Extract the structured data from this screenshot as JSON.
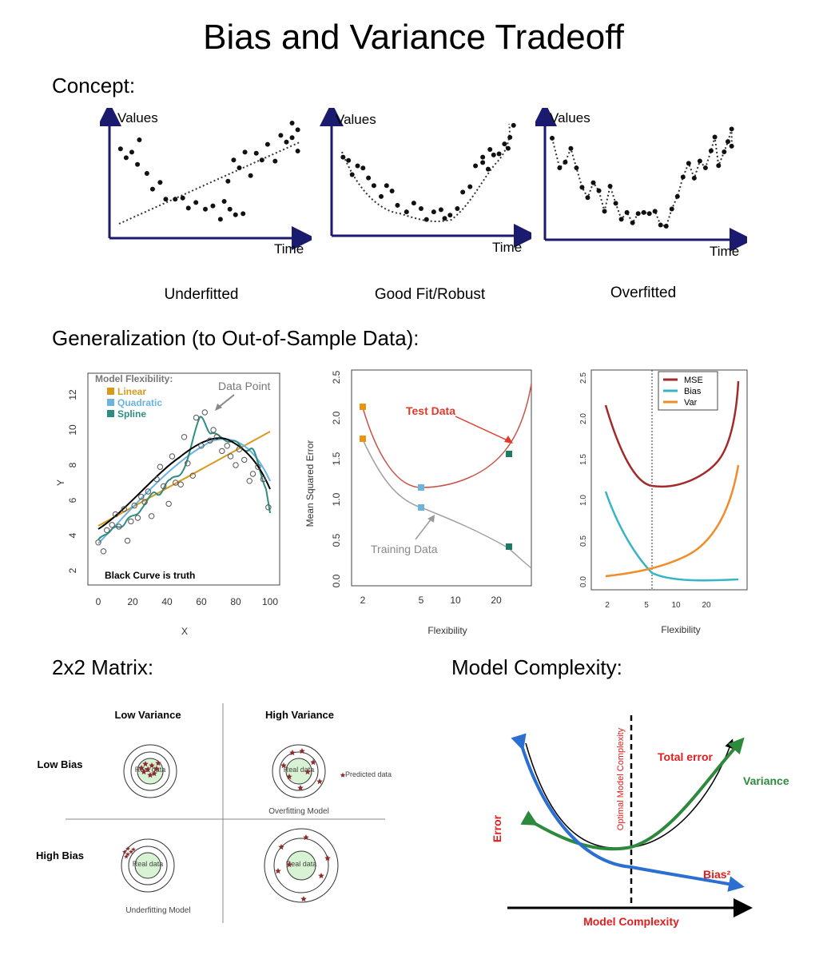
{
  "title": "Bias and Variance Tradeoff",
  "sections": {
    "concept": "Concept:",
    "generalization": "Generalization (to Out-of-Sample Data):",
    "matrix": "2x2 Matrix:",
    "complexity": "Model Complexity:"
  },
  "concept": {
    "panels": [
      {
        "ylabel": "Values",
        "xlabel": "Time",
        "caption": "Underfitted"
      },
      {
        "ylabel": "Values",
        "xlabel": "Time",
        "caption": "Good Fit/Robust"
      },
      {
        "ylabel": "Values",
        "xlabel": "Time",
        "caption": "Overfitted"
      }
    ],
    "points_underfit": [
      [
        0.05,
        0.72
      ],
      [
        0.08,
        0.64
      ],
      [
        0.11,
        0.69
      ],
      [
        0.14,
        0.58
      ],
      [
        0.15,
        0.8
      ],
      [
        0.19,
        0.5
      ],
      [
        0.22,
        0.36
      ],
      [
        0.26,
        0.42
      ],
      [
        0.29,
        0.27
      ],
      [
        0.34,
        0.27
      ],
      [
        0.38,
        0.28
      ],
      [
        0.41,
        0.19
      ],
      [
        0.45,
        0.24
      ],
      [
        0.5,
        0.18
      ],
      [
        0.54,
        0.21
      ],
      [
        0.58,
        0.09
      ],
      [
        0.63,
        0.18
      ],
      [
        0.66,
        0.13
      ],
      [
        0.7,
        0.14
      ],
      [
        0.6,
        0.25
      ],
      [
        0.62,
        0.43
      ],
      [
        0.65,
        0.62
      ],
      [
        0.68,
        0.55
      ],
      [
        0.71,
        0.69
      ],
      [
        0.74,
        0.48
      ],
      [
        0.77,
        0.68
      ],
      [
        0.8,
        0.62
      ],
      [
        0.83,
        0.76
      ],
      [
        0.87,
        0.61
      ],
      [
        0.9,
        0.84
      ],
      [
        0.93,
        0.78
      ],
      [
        0.96,
        0.82
      ],
      [
        0.96,
        0.95
      ],
      [
        0.99,
        0.89
      ],
      [
        0.99,
        0.7
      ]
    ],
    "points_good": [
      [
        0.05,
        0.66
      ],
      [
        0.08,
        0.63
      ],
      [
        0.1,
        0.5
      ],
      [
        0.13,
        0.58
      ],
      [
        0.16,
        0.56
      ],
      [
        0.19,
        0.47
      ],
      [
        0.22,
        0.4
      ],
      [
        0.26,
        0.3
      ],
      [
        0.29,
        0.4
      ],
      [
        0.32,
        0.35
      ],
      [
        0.35,
        0.22
      ],
      [
        0.4,
        0.16
      ],
      [
        0.44,
        0.24
      ],
      [
        0.48,
        0.19
      ],
      [
        0.51,
        0.09
      ],
      [
        0.55,
        0.16
      ],
      [
        0.59,
        0.18
      ],
      [
        0.61,
        0.1
      ],
      [
        0.64,
        0.13
      ],
      [
        0.68,
        0.19
      ],
      [
        0.71,
        0.34
      ],
      [
        0.75,
        0.39
      ],
      [
        0.78,
        0.58
      ],
      [
        0.82,
        0.61
      ],
      [
        0.85,
        0.55
      ],
      [
        0.88,
        0.68
      ],
      [
        0.91,
        0.69
      ],
      [
        0.94,
        0.78
      ],
      [
        0.97,
        0.84
      ],
      [
        0.99,
        0.95
      ],
      [
        0.96,
        0.74
      ],
      [
        0.86,
        0.73
      ],
      [
        0.82,
        0.66
      ]
    ],
    "points_over": [
      [
        0.03,
        0.84
      ],
      [
        0.07,
        0.58
      ],
      [
        0.1,
        0.63
      ],
      [
        0.13,
        0.75
      ],
      [
        0.16,
        0.58
      ],
      [
        0.19,
        0.41
      ],
      [
        0.22,
        0.32
      ],
      [
        0.25,
        0.45
      ],
      [
        0.28,
        0.38
      ],
      [
        0.31,
        0.2
      ],
      [
        0.34,
        0.42
      ],
      [
        0.37,
        0.27
      ],
      [
        0.4,
        0.13
      ],
      [
        0.43,
        0.19
      ],
      [
        0.46,
        0.1
      ],
      [
        0.49,
        0.18
      ],
      [
        0.52,
        0.19
      ],
      [
        0.55,
        0.18
      ],
      [
        0.58,
        0.2
      ],
      [
        0.61,
        0.08
      ],
      [
        0.64,
        0.07
      ],
      [
        0.67,
        0.22
      ],
      [
        0.7,
        0.33
      ],
      [
        0.73,
        0.5
      ],
      [
        0.76,
        0.62
      ],
      [
        0.79,
        0.49
      ],
      [
        0.82,
        0.64
      ],
      [
        0.85,
        0.58
      ],
      [
        0.88,
        0.73
      ],
      [
        0.9,
        0.85
      ],
      [
        0.92,
        0.6
      ],
      [
        0.95,
        0.72
      ],
      [
        0.97,
        0.81
      ],
      [
        0.99,
        0.92
      ],
      [
        0.99,
        0.77
      ]
    ]
  },
  "fig1": {
    "legend_title": "Model Flexibility:",
    "legend": [
      "Linear",
      "Quadratic",
      "Spline"
    ],
    "annotation": "Data Point",
    "note": "Black Curve is truth",
    "xlabel": "X",
    "ylabel": "Y",
    "xticks": [
      "0",
      "20",
      "40",
      "60",
      "80",
      "100"
    ],
    "yticks": [
      "2",
      "4",
      "6",
      "8",
      "10",
      "12"
    ],
    "colors": {
      "linear": "#d69a1c",
      "quadratic": "#6ab4de",
      "spline": "#2e8c80",
      "truth": "#000000",
      "points": "#555555"
    }
  },
  "fig2": {
    "ylabel": "Mean Squared Error",
    "xlabel": "Flexibility",
    "yticks": [
      "0.0",
      "0.5",
      "1.0",
      "1.5",
      "2.0",
      "2.5"
    ],
    "xticks": [
      "2",
      "5",
      "10",
      "20"
    ],
    "test_label": "Test Data",
    "train_label": "Training Data",
    "colors": {
      "test": "#c9534a",
      "train": "#a0a0a0",
      "arrow_red": "#e03a2a",
      "arrow_gray": "#9a9a9a"
    }
  },
  "fig3": {
    "legend": [
      "MSE",
      "Bias",
      "Var"
    ],
    "xlabel": "Flexibility",
    "yticks": [
      "0.0",
      "0.5",
      "1.0",
      "1.5",
      "2.0",
      "2.5"
    ],
    "xticks": [
      "2",
      "5",
      "10",
      "20"
    ],
    "colors": {
      "mse": "#a32a2a",
      "bias": "#36b6c4",
      "var": "#ef8d2a"
    }
  },
  "matrix": {
    "col_headers": [
      "Low Variance",
      "High Variance"
    ],
    "row_headers": [
      "Low Bias",
      "High Bias"
    ],
    "center_label": "Real data",
    "predicted_label": "Predicted data",
    "overfit_label": "Overfitting Model",
    "underfit_label": "Underfitting Model",
    "colors": {
      "star": "#8b2d2d",
      "center": "#d8f3d4"
    }
  },
  "complexity": {
    "total_error": "Total error",
    "variance": "Variance",
    "bias": "Bias²",
    "error": "Error",
    "optimal": "Optimal Model Complexity",
    "xlabel": "Model Complexity",
    "colors": {
      "bias": "#2a6fd1",
      "variance": "#2d8a3d",
      "total": "#000000",
      "text_red": "#e21d1d",
      "text_green": "#2d8a3d"
    }
  }
}
